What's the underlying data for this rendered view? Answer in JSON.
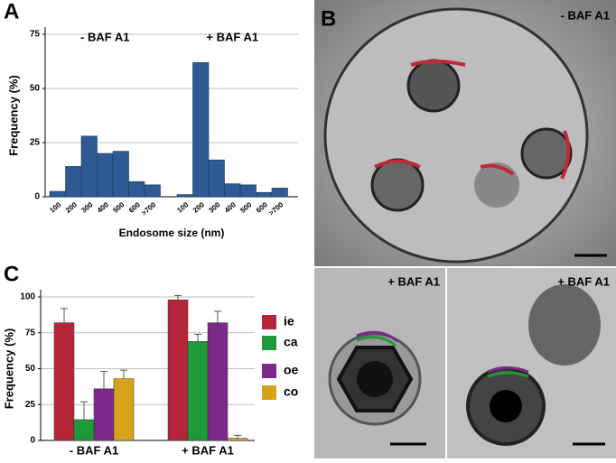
{
  "chart_data": [
    {
      "type": "bar",
      "panel": "A",
      "ylabel": "Frequency (%)",
      "xlabel": "Endosome size (nm)",
      "categories": [
        "100",
        "200",
        "300",
        "400",
        "500",
        "600",
        ">700"
      ],
      "series": [
        {
          "name": "- BAF A1",
          "color": "#2e5b93",
          "values": [
            2.5,
            14,
            28,
            20,
            21,
            7,
            5.5
          ]
        },
        {
          "name": "+ BAF A1",
          "color": "#2e5b93",
          "values": [
            1,
            62,
            17,
            6,
            5.5,
            2,
            4
          ]
        }
      ],
      "ylim": [
        0,
        75
      ],
      "yticks": [
        0,
        25,
        50,
        75
      ],
      "grid": true
    },
    {
      "type": "grouped_bar",
      "panel": "C",
      "ylabel": "Frequency (%)",
      "categories": [
        "- BAF A1",
        "+ BAF A1"
      ],
      "series": [
        {
          "name": "ie",
          "color": "#b3263a",
          "values": [
            82,
            98
          ],
          "errors": [
            10,
            3
          ]
        },
        {
          "name": "ca",
          "color": "#1f9a3a",
          "values": [
            14.5,
            69
          ],
          "errors": [
            12.5,
            5
          ]
        },
        {
          "name": "oe",
          "color": "#7b2a8a",
          "values": [
            36,
            82
          ],
          "errors": [
            12,
            8
          ]
        },
        {
          "name": "co",
          "color": "#d9a21b",
          "values": [
            43,
            1.5
          ],
          "errors": [
            6,
            2
          ]
        }
      ],
      "ylim": [
        0,
        100
      ],
      "yticks": [
        0,
        25,
        50,
        75,
        100
      ],
      "grid": true
    }
  ],
  "micrographs": {
    "panel": "B",
    "labels": [
      "- BAF A1",
      "+ BAF A1",
      "+ BAF A1"
    ]
  }
}
